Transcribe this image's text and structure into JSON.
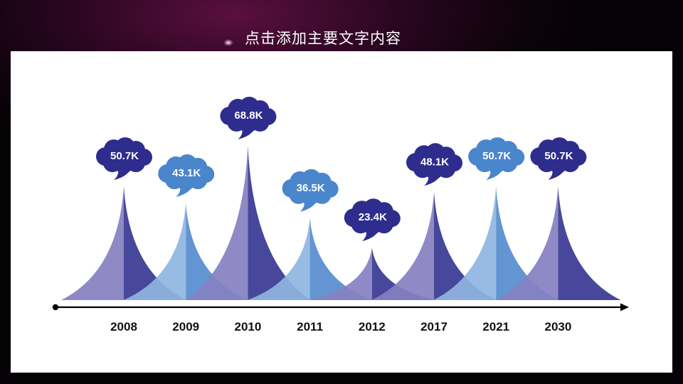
{
  "title": "点击添加主要文字内容",
  "colors": {
    "dark": "#2e2d8d",
    "purple": "#8580c0",
    "blue": "#4d86cd",
    "light": "#8fb5e1",
    "cloud_dark": "#2e2d8d",
    "cloud_light": "#4a86cc"
  },
  "chart_data": {
    "type": "area",
    "title": "点击添加主要文字内容",
    "xlabel": "",
    "ylabel": "",
    "categories": [
      "2008",
      "2009",
      "2010",
      "2011",
      "2012",
      "2017",
      "2021",
      "2030"
    ],
    "values": [
      50.7,
      43.1,
      68.8,
      36.5,
      23.4,
      48.1,
      50.7,
      50.7
    ],
    "labels": [
      "50.7K",
      "43.1K",
      "68.8K",
      "36.5K",
      "23.4K",
      "48.1K",
      "50.7K",
      "50.7K"
    ],
    "peak_colors": [
      "purple",
      "light",
      "purple",
      "light",
      "purple",
      "purple",
      "light",
      "purple"
    ],
    "cloud_colors": [
      "cloud_dark",
      "cloud_light",
      "cloud_dark",
      "cloud_light",
      "cloud_dark",
      "cloud_dark",
      "cloud_light",
      "cloud_dark"
    ],
    "grid": false,
    "legend": "none"
  }
}
